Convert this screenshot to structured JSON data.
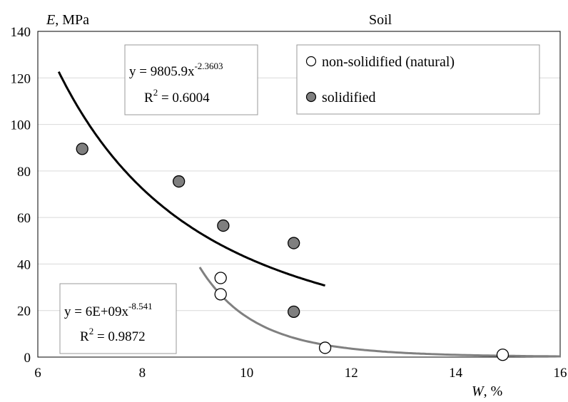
{
  "chart_data": {
    "type": "scatter",
    "title": "Soil",
    "ylabel": {
      "var": "E",
      "unit": ", MPa"
    },
    "xlabel": {
      "var": "W",
      "unit": ", %"
    },
    "xlim": [
      6,
      16
    ],
    "ylim": [
      0,
      140
    ],
    "xticks": [
      6,
      8,
      10,
      12,
      14,
      16
    ],
    "yticks": [
      0,
      20,
      40,
      60,
      80,
      100,
      120,
      140
    ],
    "grid": true,
    "legend_position": "top-right",
    "series": [
      {
        "name": "non-solidified (natural)",
        "marker": "open-circle",
        "color": "#ffffff",
        "points": [
          [
            9.5,
            34
          ],
          [
            9.5,
            27
          ],
          [
            11.5,
            4
          ],
          [
            14.9,
            1
          ]
        ]
      },
      {
        "name": "solidified",
        "marker": "filled-circle",
        "color": "#7f7f7f",
        "points": [
          [
            6.85,
            89.5
          ],
          [
            8.7,
            75.5
          ],
          [
            9.55,
            56.5
          ],
          [
            10.9,
            49
          ],
          [
            10.9,
            19.5
          ]
        ]
      }
    ],
    "trendlines": [
      {
        "series": "solidified",
        "color": "#000000",
        "a": 9805.9,
        "b": -2.3603,
        "x_range": [
          6.4,
          11.5
        ],
        "equation_base": "y = 9805.9x",
        "equation_exp": "-2.3603",
        "r2_text": " = 0.6004"
      },
      {
        "series": "non-solidified (natural)",
        "color": "#808080",
        "a": 6000000000,
        "b": -8.541,
        "x_range": [
          9.1,
          16
        ],
        "equation_base": "y = 6E+09x",
        "equation_exp": "-8.541",
        "r2_text": " = 0.9872"
      }
    ]
  }
}
